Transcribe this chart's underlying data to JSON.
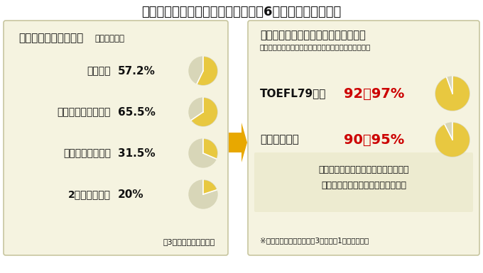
{
  "title": "アメリカの大学卒業率と留学英検（6年間で卒業する率）",
  "bg_color": "#ffffff",
  "left_panel_bg": "#f5f3e0",
  "right_panel_bg": "#f5f3e0",
  "border_color": "#c8c6a0",
  "left_header": "アメリカの大学卒業率",
  "left_header_sub": "（全米平均）",
  "right_header": "奨学金留学プログラム参加者の卒業率",
  "right_header_sub": "（参加者からのフィードバックにより全体の率を推定）",
  "left_items": [
    {
      "label": "公立大学",
      "value": "57.2%",
      "pct": 57.2
    },
    {
      "label": "私立大学（非営利）",
      "value": "65.5%",
      "pct": 65.5
    },
    {
      "label": "私立大学（営利）",
      "value": "31.5%",
      "pct": 31.5
    },
    {
      "label": "2年制州立大学",
      "value": "20%",
      "pct": 20.0
    }
  ],
  "left_footer": "（3年間で卒業する率）",
  "right_items": [
    {
      "label": "TOEFL79以上",
      "value": "92〜97%",
      "pct": 94.5
    },
    {
      "label": "留学英検修了",
      "value": "90〜95%",
      "pct": 92.5
    }
  ],
  "right_note1": "留学英検を修了できた人のほとんどが",
  "right_note2": "アメリカの大学を無事卒業している",
  "right_footnote": "※留学英検修了＝留学英検3レベル中1レベルを修了",
  "pie_color_filled": "#e8c840",
  "pie_color_empty": "#d8d6b8",
  "red_color": "#cc0000",
  "arrow_color": "#e8a800",
  "title_color": "#111111",
  "text_color": "#111111"
}
